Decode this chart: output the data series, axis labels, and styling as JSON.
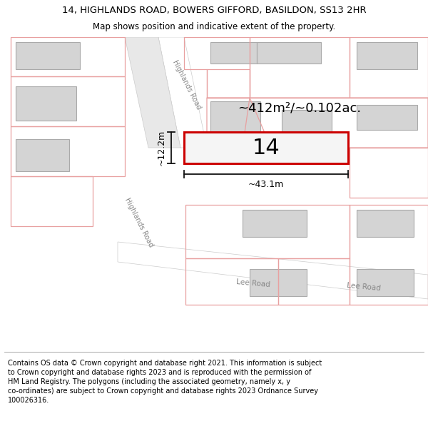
{
  "title_line1": "14, HIGHLANDS ROAD, BOWERS GIFFORD, BASILDON, SS13 2HR",
  "title_line2": "Map shows position and indicative extent of the property.",
  "footer_text": "Contains OS data © Crown copyright and database right 2021. This information is subject to Crown copyright and database rights 2023 and is reproduced with the permission of HM Land Registry. The polygons (including the associated geometry, namely x, y co-ordinates) are subject to Crown copyright and database rights 2023 Ordnance Survey 100026316.",
  "map_bg": "#f0f0f0",
  "road_fill_white": "#ffffff",
  "road_fill_light": "#e8e8e8",
  "building_fill": "#d4d4d4",
  "building_stroke": "#aaaaaa",
  "highlight_stroke": "#cc0000",
  "dim_line_color": "#111111",
  "area_text": "~412m²/~0.102ac.",
  "label_text": "14",
  "dim_h_text": "~12.2m",
  "dim_w_text": "~43.1m",
  "road_color": "#888888",
  "title_fontsize": 9.5,
  "subtitle_fontsize": 8.5,
  "footer_fontsize": 7.0
}
